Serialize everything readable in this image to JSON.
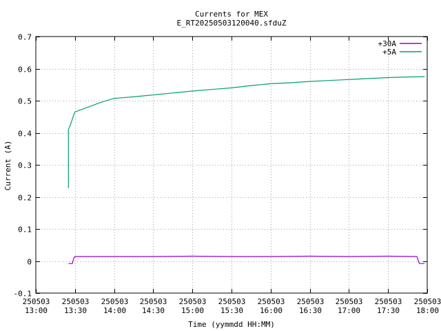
{
  "chart_data": {
    "type": "line",
    "title": "Currents for MEX",
    "subtitle": "E_RT20250503120040.sfduZ",
    "xlabel": "Time (yymmdd HH:MM)",
    "ylabel": "Current (A)",
    "xlim": [
      "250503 13:00",
      "250503 18:00"
    ],
    "ylim": [
      -0.1,
      0.7
    ],
    "grid": true,
    "legend_position": "top-right",
    "x_ticks": [
      {
        "date": "250503",
        "time": "13:00"
      },
      {
        "date": "250503",
        "time": "13:30"
      },
      {
        "date": "250503",
        "time": "14:00"
      },
      {
        "date": "250503",
        "time": "14:30"
      },
      {
        "date": "250503",
        "time": "15:00"
      },
      {
        "date": "250503",
        "time": "15:30"
      },
      {
        "date": "250503",
        "time": "16:00"
      },
      {
        "date": "250503",
        "time": "16:30"
      },
      {
        "date": "250503",
        "time": "17:00"
      },
      {
        "date": "250503",
        "time": "17:30"
      },
      {
        "date": "250503",
        "time": "18:00"
      }
    ],
    "y_ticks": [
      "-0.1",
      "0",
      "0.1",
      "0.2",
      "0.3",
      "0.4",
      "0.5",
      "0.6",
      "0.7"
    ],
    "series": [
      {
        "name": "+30A",
        "color": "#9400d3",
        "points": [
          [
            "250503 13:25",
            -0.008
          ],
          [
            "250503 13:28",
            -0.008
          ],
          [
            "250503 13:29",
            0.008
          ],
          [
            "250503 13:30",
            0.014
          ],
          [
            "250503 14:00",
            0.014
          ],
          [
            "250503 14:30",
            0.014
          ],
          [
            "250503 15:00",
            0.015
          ],
          [
            "250503 15:30",
            0.014
          ],
          [
            "250503 16:00",
            0.014
          ],
          [
            "250503 16:30",
            0.015
          ],
          [
            "250503 17:00",
            0.014
          ],
          [
            "250503 17:30",
            0.015
          ],
          [
            "250503 17:52",
            0.014
          ],
          [
            "250503 17:54",
            -0.008
          ],
          [
            "250503 17:58",
            -0.008
          ]
        ]
      },
      {
        "name": "+5A",
        "color": "#009e73",
        "points": [
          [
            "250503 13:25",
            0.227
          ],
          [
            "250503 13:25",
            0.41
          ],
          [
            "250503 13:27",
            0.43
          ],
          [
            "250503 13:29",
            0.455
          ],
          [
            "250503 13:30",
            0.465
          ],
          [
            "250503 13:40",
            0.48
          ],
          [
            "250503 13:50",
            0.495
          ],
          [
            "250503 14:00",
            0.507
          ],
          [
            "250503 14:15",
            0.512
          ],
          [
            "250503 14:30",
            0.518
          ],
          [
            "250503 14:45",
            0.524
          ],
          [
            "250503 15:00",
            0.53
          ],
          [
            "250503 15:15",
            0.535
          ],
          [
            "250503 15:30",
            0.54
          ],
          [
            "250503 15:45",
            0.547
          ],
          [
            "250503 16:00",
            0.553
          ],
          [
            "250503 16:15",
            0.556
          ],
          [
            "250503 16:30",
            0.56
          ],
          [
            "250503 16:45",
            0.563
          ],
          [
            "250503 17:00",
            0.566
          ],
          [
            "250503 17:15",
            0.569
          ],
          [
            "250503 17:30",
            0.572
          ],
          [
            "250503 17:45",
            0.574
          ],
          [
            "250503 17:58",
            0.575
          ]
        ]
      }
    ]
  }
}
